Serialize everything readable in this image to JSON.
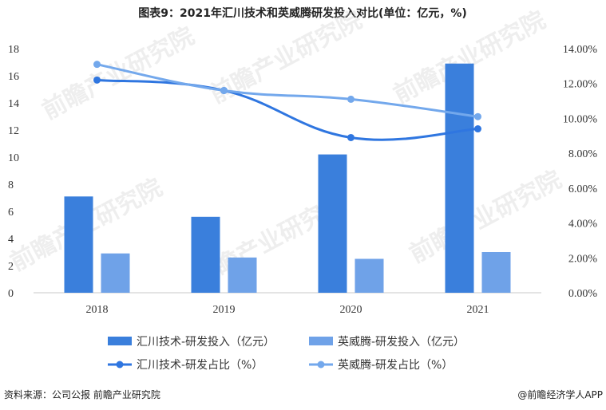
{
  "chart_data": {
    "type": "bar+line",
    "title": "图表9：2021年汇川技术和英威腾研发投入对比(单位：亿元，%)",
    "categories": [
      "2018",
      "2019",
      "2020",
      "2021"
    ],
    "bar_series": [
      {
        "name": "汇川技术-研发投入（亿元）",
        "values": [
          7.1,
          5.6,
          10.2,
          16.9
        ],
        "color": "#3a7fdc"
      },
      {
        "name": "英威腾-研发投入（亿元）",
        "values": [
          2.9,
          2.6,
          2.5,
          3.0
        ],
        "color": "#6fa2e8"
      }
    ],
    "line_series": [
      {
        "name": "汇川技术-研发占比（%）",
        "values": [
          12.2,
          11.6,
          8.9,
          9.4
        ],
        "color": "#2f76e0"
      },
      {
        "name": "英威腾-研发占比（%）",
        "values": [
          13.1,
          11.6,
          11.1,
          10.1
        ],
        "color": "#73a8ec"
      }
    ],
    "y_left": {
      "min": 0,
      "max": 18,
      "ticks": [
        "0",
        "2",
        "4",
        "6",
        "8",
        "10",
        "12",
        "14",
        "16",
        "18"
      ]
    },
    "y_right": {
      "min": 0,
      "max": 14,
      "ticks": [
        "0.00%",
        "2.00%",
        "4.00%",
        "6.00%",
        "8.00%",
        "10.00%",
        "12.00%",
        "14.00%"
      ]
    },
    "legend_position": "bottom",
    "grid": false
  },
  "footer": {
    "source": "资料来源：公司公报 前瞻产业研究院",
    "brand": "@前瞻经济学人APP"
  },
  "watermark": "前瞻产业研究院"
}
